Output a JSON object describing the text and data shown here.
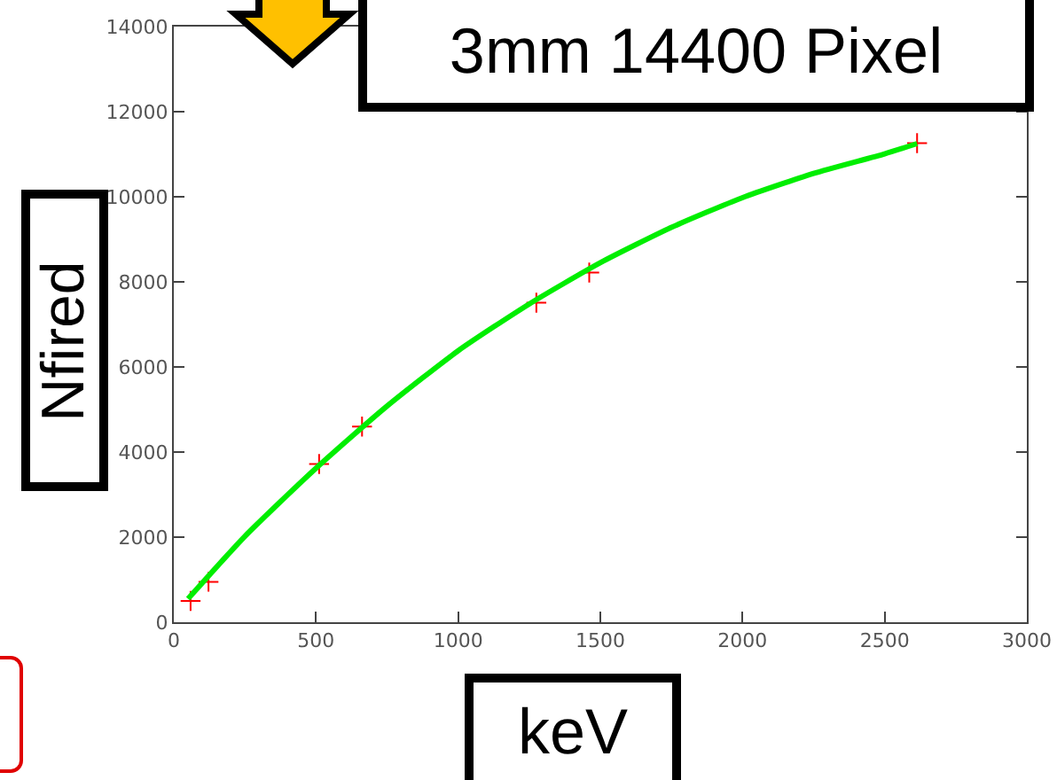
{
  "chart_data": {
    "type": "scatter",
    "title": "3mm 14400 Pixel",
    "xlabel": "keV",
    "ylabel": "Nfired",
    "xlim": [
      0,
      3000
    ],
    "xticks": [
      0,
      500,
      1000,
      1500,
      2000,
      2500,
      3000
    ],
    "ylim": [
      0,
      14000
    ],
    "yticks": [
      0,
      2000,
      4000,
      6000,
      8000,
      10000,
      12000,
      14000
    ],
    "grid": false,
    "marker": "cross",
    "series": [
      {
        "color": "#ff0000",
        "x": [
          59,
          122,
          511,
          662,
          1275,
          1461,
          2614
        ],
        "values": [
          500,
          950,
          3720,
          4600,
          7510,
          8220,
          11260
        ]
      },
      {
        "type": "line",
        "color": "#00ee00",
        "line_style": "solid",
        "marker": "none",
        "x": [
          50,
          250,
          500,
          750,
          1000,
          1250,
          1500,
          1750,
          2000,
          2250,
          2500,
          2614
        ],
        "values": [
          550,
          2020,
          3620,
          5080,
          6380,
          7480,
          8450,
          9280,
          9980,
          10550,
          11010,
          11250
        ]
      }
    ]
  }
}
